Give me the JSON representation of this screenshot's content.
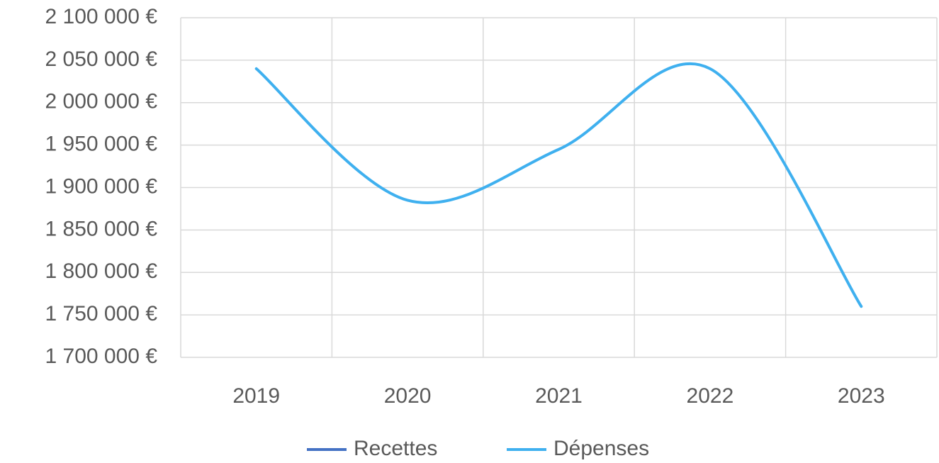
{
  "chart_data": {
    "type": "line",
    "categories": [
      "2019",
      "2020",
      "2021",
      "2022",
      "2023"
    ],
    "series": [
      {
        "name": "Recettes",
        "color": "#4472c4",
        "values": [
          null,
          null,
          null,
          null,
          null
        ]
      },
      {
        "name": "Dépenses",
        "color": "#3fb0ef",
        "values": [
          2040000,
          1885000,
          1945000,
          2040000,
          1760000
        ]
      }
    ],
    "ylim": [
      1700000,
      2100000
    ],
    "yticks": [
      {
        "value": 1700000,
        "label": "1 700 000 €"
      },
      {
        "value": 1750000,
        "label": "1 750 000 €"
      },
      {
        "value": 1800000,
        "label": "1 800 000 €"
      },
      {
        "value": 1850000,
        "label": "1 850 000 €"
      },
      {
        "value": 1900000,
        "label": "1 900 000 €"
      },
      {
        "value": 1950000,
        "label": "1 950 000 €"
      },
      {
        "value": 2000000,
        "label": "2 000 000 €"
      },
      {
        "value": 2050000,
        "label": "2 050 000 €"
      },
      {
        "value": 2100000,
        "label": "2 100 000 €"
      }
    ],
    "grid": true,
    "smooth": true,
    "legend": "bottom"
  }
}
